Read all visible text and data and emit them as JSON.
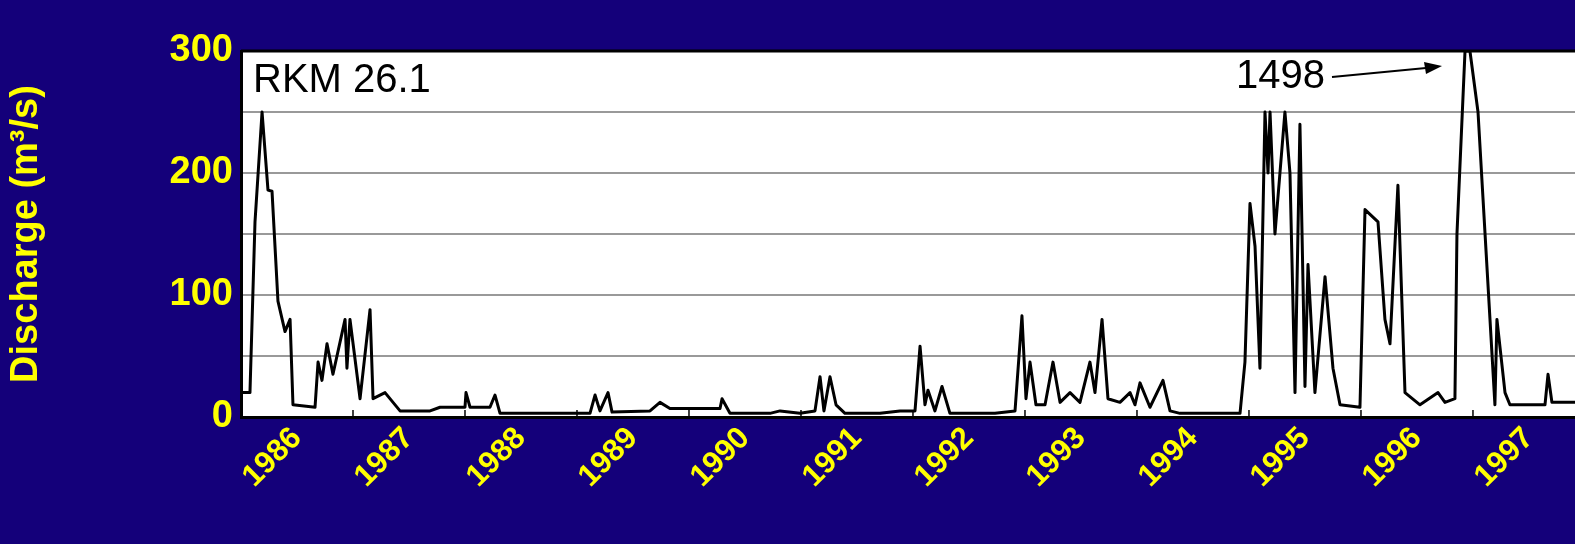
{
  "chart_data": {
    "type": "line",
    "ylabel": "Discharge (m³/s)",
    "annotations": [
      "RKM 26.1",
      "1498"
    ],
    "x": [
      1986,
      1986.08,
      1986.125,
      1986.188,
      1986.241,
      1986.277,
      1986.33,
      1986.393,
      1986.438,
      1986.464,
      1986.661,
      1986.688,
      1986.723,
      1986.768,
      1986.821,
      1986.929,
      1986.946,
      1986.973,
      1987.063,
      1987.152,
      1987.179,
      1987.286,
      1987.42,
      1987.688,
      1987.777,
      1988,
      1988.009,
      1988.045,
      1988.223,
      1988.268,
      1988.313,
      1989.116,
      1989.161,
      1989.205,
      1989.277,
      1989.313,
      1989.652,
      1989.741,
      1989.83,
      1990.277,
      1990.295,
      1990.366,
      1990.723,
      1990.813,
      1990.991,
      1991.125,
      1991.17,
      1991.205,
      1991.259,
      1991.313,
      1991.393,
      1991.705,
      1991.884,
      1992.018,
      1992.063,
      1992.107,
      1992.134,
      1992.196,
      1992.259,
      1992.33,
      1992.732,
      1992.911,
      1992.973,
      1993.009,
      1993.045,
      1993.098,
      1993.179,
      1993.25,
      1993.313,
      1993.402,
      1993.491,
      1993.58,
      1993.625,
      1993.688,
      1993.741,
      1993.848,
      1993.938,
      1993.982,
      1994.027,
      1994.116,
      1994.232,
      1994.295,
      1994.384,
      1994.92,
      1994.964,
      1995.009,
      1995.054,
      1995.098,
      1995.143,
      1995.17,
      1995.188,
      1995.232,
      1995.321,
      1995.366,
      1995.411,
      1995.455,
      1995.5,
      1995.527,
      1995.589,
      1995.679,
      1995.75,
      1995.813,
      1995.991,
      1996.036,
      1996.152,
      1996.214,
      1996.259,
      1996.33,
      1996.393,
      1996.527,
      1996.688,
      1996.75,
      1996.839,
      1996.857,
      1996.929,
      1996.973,
      1997.045,
      1997.089,
      1997.196,
      1997.214,
      1997.286,
      1997.33,
      1997.643,
      1997.67,
      1997.705,
      1997.911
    ],
    "series": [
      {
        "color": "#000000",
        "values": [
          20,
          20,
          160,
          250,
          186,
          185,
          95,
          70,
          80,
          10,
          8,
          45,
          30,
          60,
          35,
          80,
          40,
          80,
          15,
          88,
          15,
          20,
          5,
          5,
          8,
          8,
          20,
          8,
          8,
          18,
          3,
          3,
          18,
          5,
          20,
          4,
          5,
          12,
          7,
          7,
          15,
          3,
          3,
          5,
          3,
          5,
          33,
          5,
          33,
          10,
          3,
          3,
          5,
          5,
          58,
          10,
          22,
          5,
          25,
          3,
          3,
          5,
          83,
          15,
          45,
          10,
          10,
          45,
          12,
          20,
          12,
          45,
          20,
          80,
          15,
          12,
          20,
          10,
          28,
          8,
          30,
          5,
          3,
          3,
          45,
          175,
          140,
          40,
          250,
          200,
          250,
          150,
          250,
          200,
          20,
          240,
          25,
          125,
          20,
          115,
          40,
          10,
          8,
          170,
          160,
          80,
          60,
          190,
          20,
          10,
          20,
          12,
          15,
          150,
          300,
          300,
          250,
          180,
          10,
          80,
          20,
          10,
          10,
          35,
          12,
          12
        ]
      }
    ],
    "xlim": [
      1986,
      1997.911
    ],
    "xticks": [
      {
        "value": 1986.5,
        "label": "1986"
      },
      {
        "value": 1987.5,
        "label": "1987"
      },
      {
        "value": 1988.5,
        "label": "1988"
      },
      {
        "value": 1989.5,
        "label": "1989"
      },
      {
        "value": 1990.5,
        "label": "1990"
      },
      {
        "value": 1991.5,
        "label": "1991"
      },
      {
        "value": 1992.5,
        "label": "1992"
      },
      {
        "value": 1993.5,
        "label": "1993"
      },
      {
        "value": 1994.5,
        "label": "1994"
      },
      {
        "value": 1995.5,
        "label": "1995"
      },
      {
        "value": 1996.5,
        "label": "1996"
      },
      {
        "value": 1997.5,
        "label": "1997"
      }
    ],
    "ylim": [
      0,
      300
    ],
    "yticks": [
      0,
      {
        "value": 50,
        "label": null
      },
      100,
      {
        "value": 150,
        "label": null
      },
      200,
      {
        "value": 250,
        "label": null
      },
      300
    ],
    "grid": "y"
  }
}
